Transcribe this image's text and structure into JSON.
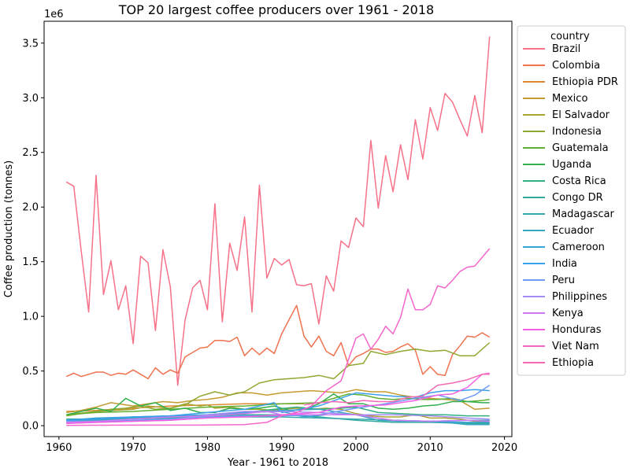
{
  "chart_data": {
    "type": "line",
    "title": "TOP 20 largest coffee producers over 1961 - 2018",
    "xlabel": "Year - 1961 to 2018",
    "ylabel": "Coffee production (tonnes)",
    "y_multiplier_label": "1e6",
    "xlim": [
      1958,
      2021
    ],
    "ylim": [
      -0.1,
      3.7
    ],
    "x_ticks": [
      1960,
      1970,
      1980,
      1990,
      2000,
      2010,
      2020
    ],
    "y_ticks": [
      0.0,
      0.5,
      1.0,
      1.5,
      2.0,
      2.5,
      3.0,
      3.5
    ],
    "y_tick_labels": [
      "0.0",
      "0.5",
      "1.0",
      "1.5",
      "2.0",
      "2.5",
      "3.0",
      "3.5"
    ],
    "legend_title": "country",
    "legend_position": "outside-right",
    "grid": false,
    "series": [
      {
        "name": "Brazil",
        "color": "#f77189",
        "years": [
          1961,
          1962,
          1963,
          1964,
          1965,
          1966,
          1967,
          1968,
          1969,
          1970,
          1971,
          1972,
          1973,
          1974,
          1975,
          1976,
          1977,
          1978,
          1979,
          1980,
          1981,
          1982,
          1983,
          1984,
          1985,
          1986,
          1987,
          1988,
          1989,
          1990,
          1991,
          1992,
          1993,
          1994,
          1995,
          1996,
          1997,
          1998,
          1999,
          2000,
          2001,
          2002,
          2003,
          2004,
          2005,
          2006,
          2007,
          2008,
          2009,
          2010,
          2011,
          2012,
          2013,
          2014,
          2015,
          2016,
          2017,
          2018
        ],
        "values": [
          2.23,
          2.19,
          1.6,
          1.04,
          2.29,
          1.2,
          1.51,
          1.06,
          1.28,
          0.75,
          1.55,
          1.49,
          0.87,
          1.61,
          1.27,
          0.37,
          0.97,
          1.26,
          1.33,
          1.06,
          2.03,
          0.95,
          1.67,
          1.42,
          1.91,
          1.04,
          2.2,
          1.35,
          1.53,
          1.47,
          1.52,
          1.29,
          1.28,
          1.3,
          0.93,
          1.37,
          1.23,
          1.69,
          1.63,
          1.9,
          1.82,
          2.61,
          1.99,
          2.47,
          2.14,
          2.57,
          2.25,
          2.8,
          2.44,
          2.91,
          2.7,
          3.04,
          2.96,
          2.8,
          2.65,
          3.02,
          2.68,
          3.56
        ]
      },
      {
        "name": "Colombia",
        "color": "#f0724f",
        "years": [
          1961,
          1962,
          1963,
          1964,
          1965,
          1966,
          1967,
          1968,
          1969,
          1970,
          1971,
          1972,
          1973,
          1974,
          1975,
          1976,
          1977,
          1978,
          1979,
          1980,
          1981,
          1982,
          1983,
          1984,
          1985,
          1986,
          1987,
          1988,
          1989,
          1990,
          1991,
          1992,
          1993,
          1994,
          1995,
          1996,
          1997,
          1998,
          1999,
          2000,
          2001,
          2002,
          2003,
          2004,
          2005,
          2006,
          2007,
          2008,
          2009,
          2010,
          2011,
          2012,
          2013,
          2014,
          2015,
          2016,
          2017,
          2018
        ],
        "values": [
          0.45,
          0.48,
          0.45,
          0.47,
          0.49,
          0.49,
          0.46,
          0.48,
          0.47,
          0.51,
          0.47,
          0.43,
          0.53,
          0.47,
          0.51,
          0.48,
          0.63,
          0.67,
          0.71,
          0.72,
          0.78,
          0.78,
          0.77,
          0.81,
          0.64,
          0.71,
          0.65,
          0.71,
          0.66,
          0.84,
          0.97,
          1.1,
          0.82,
          0.72,
          0.82,
          0.68,
          0.64,
          0.76,
          0.55,
          0.63,
          0.66,
          0.7,
          0.7,
          0.67,
          0.68,
          0.72,
          0.75,
          0.69,
          0.47,
          0.54,
          0.47,
          0.46,
          0.65,
          0.73,
          0.82,
          0.81,
          0.85,
          0.81
        ]
      },
      {
        "name": "Ethiopia PDR",
        "color": "#dd8b31",
        "years": [
          1961,
          1965,
          1970,
          1975,
          1980,
          1985,
          1990,
          1993
        ],
        "values": [
          0.13,
          0.14,
          0.16,
          0.18,
          0.19,
          0.2,
          0.2,
          0.2
        ]
      },
      {
        "name": "Mexico",
        "color": "#c49b31",
        "years": [
          1961,
          1963,
          1965,
          1967,
          1968,
          1970,
          1972,
          1974,
          1976,
          1978,
          1980,
          1982,
          1984,
          1986,
          1988,
          1990,
          1992,
          1994,
          1996,
          1998,
          2000,
          2002,
          2004,
          2006,
          2008,
          2010,
          2012,
          2014,
          2016,
          2018
        ],
        "values": [
          0.12,
          0.14,
          0.17,
          0.21,
          0.2,
          0.18,
          0.2,
          0.22,
          0.21,
          0.23,
          0.24,
          0.26,
          0.3,
          0.3,
          0.28,
          0.3,
          0.31,
          0.32,
          0.31,
          0.3,
          0.33,
          0.31,
          0.31,
          0.28,
          0.26,
          0.25,
          0.24,
          0.23,
          0.15,
          0.16
        ]
      },
      {
        "name": "El Salvador",
        "color": "#aba231",
        "years": [
          1961,
          1965,
          1970,
          1972,
          1975,
          1977,
          1979,
          1980,
          1981,
          1983,
          1985,
          1987,
          1989,
          1990,
          1992,
          1994,
          1996,
          1998,
          2000,
          2002,
          2004,
          2006,
          2008,
          2010,
          2012,
          2014,
          2016,
          2018
        ],
        "values": [
          0.1,
          0.13,
          0.15,
          0.18,
          0.16,
          0.2,
          0.18,
          0.19,
          0.16,
          0.17,
          0.15,
          0.15,
          0.14,
          0.15,
          0.16,
          0.15,
          0.16,
          0.15,
          0.11,
          0.09,
          0.08,
          0.08,
          0.1,
          0.07,
          0.07,
          0.06,
          0.04,
          0.03
        ]
      },
      {
        "name": "Indonesia",
        "color": "#8ea831",
        "years": [
          1961,
          1963,
          1965,
          1967,
          1969,
          1971,
          1973,
          1975,
          1977,
          1979,
          1981,
          1983,
          1985,
          1987,
          1989,
          1991,
          1993,
          1995,
          1997,
          1999,
          2001,
          2002,
          2004,
          2006,
          2008,
          2010,
          2012,
          2014,
          2016,
          2018
        ],
        "values": [
          0.09,
          0.11,
          0.13,
          0.15,
          0.16,
          0.18,
          0.15,
          0.16,
          0.19,
          0.27,
          0.31,
          0.28,
          0.31,
          0.39,
          0.42,
          0.43,
          0.44,
          0.46,
          0.43,
          0.55,
          0.57,
          0.68,
          0.65,
          0.68,
          0.7,
          0.68,
          0.69,
          0.64,
          0.64,
          0.76
        ]
      },
      {
        "name": "Guatemala",
        "color": "#5fb031",
        "years": [
          1961,
          1965,
          1970,
          1975,
          1980,
          1985,
          1990,
          1995,
          1997,
          1999,
          2001,
          2003,
          2005,
          2007,
          2009,
          2011,
          2013,
          2015,
          2017,
          2018
        ],
        "values": [
          0.1,
          0.12,
          0.13,
          0.15,
          0.17,
          0.18,
          0.2,
          0.21,
          0.25,
          0.29,
          0.28,
          0.25,
          0.24,
          0.25,
          0.24,
          0.24,
          0.25,
          0.22,
          0.23,
          0.24
        ]
      },
      {
        "name": "Uganda",
        "color": "#33b04d",
        "years": [
          1961,
          1963,
          1965,
          1967,
          1969,
          1971,
          1973,
          1975,
          1977,
          1979,
          1981,
          1983,
          1985,
          1987,
          1989,
          1991,
          1993,
          1995,
          1997,
          1999,
          2001,
          2003,
          2005,
          2007,
          2009,
          2011,
          2013,
          2015,
          2017,
          2018
        ],
        "values": [
          0.1,
          0.13,
          0.16,
          0.13,
          0.25,
          0.18,
          0.21,
          0.14,
          0.16,
          0.12,
          0.12,
          0.16,
          0.15,
          0.16,
          0.18,
          0.14,
          0.15,
          0.2,
          0.29,
          0.2,
          0.2,
          0.16,
          0.15,
          0.16,
          0.18,
          0.19,
          0.22,
          0.22,
          0.21,
          0.21
        ]
      },
      {
        "name": "Costa Rica",
        "color": "#34ad7f",
        "years": [
          1961,
          1965,
          1970,
          1975,
          1980,
          1985,
          1989,
          1992,
          1995,
          1998,
          2000,
          2003,
          2006,
          2009,
          2012,
          2015,
          2018
        ],
        "values": [
          0.05,
          0.06,
          0.08,
          0.08,
          0.1,
          0.12,
          0.15,
          0.17,
          0.15,
          0.16,
          0.17,
          0.12,
          0.11,
          0.1,
          0.1,
          0.09,
          0.09
        ]
      },
      {
        "name": "Congo DR",
        "color": "#35aa9c",
        "years": [
          1961,
          1965,
          1970,
          1975,
          1980,
          1985,
          1990,
          1995,
          2000,
          2005,
          2010,
          2015,
          2018
        ],
        "values": [
          0.06,
          0.06,
          0.07,
          0.08,
          0.09,
          0.1,
          0.1,
          0.08,
          0.05,
          0.03,
          0.03,
          0.02,
          0.02
        ]
      },
      {
        "name": "Madagascar",
        "color": "#36a8b0",
        "years": [
          1961,
          1965,
          1970,
          1975,
          1980,
          1985,
          1990,
          1995,
          2000,
          2005,
          2010,
          2015,
          2018
        ],
        "values": [
          0.05,
          0.05,
          0.06,
          0.07,
          0.08,
          0.08,
          0.08,
          0.07,
          0.06,
          0.05,
          0.04,
          0.05,
          0.05
        ]
      },
      {
        "name": "Ecuador",
        "color": "#37a6c1",
        "years": [
          1961,
          1965,
          1970,
          1975,
          1980,
          1985,
          1990,
          1995,
          2000,
          2003,
          2006,
          2009,
          2012,
          2015,
          2018
        ],
        "values": [
          0.03,
          0.05,
          0.07,
          0.09,
          0.09,
          0.12,
          0.14,
          0.15,
          0.1,
          0.05,
          0.04,
          0.04,
          0.03,
          0.01,
          0.01
        ]
      },
      {
        "name": "Cameroon",
        "color": "#38a3d6",
        "years": [
          1961,
          1965,
          1970,
          1975,
          1980,
          1985,
          1990,
          1993,
          1996,
          2000,
          2005,
          2010,
          2015,
          2018
        ],
        "values": [
          0.05,
          0.07,
          0.08,
          0.09,
          0.1,
          0.12,
          0.13,
          0.08,
          0.1,
          0.1,
          0.05,
          0.04,
          0.03,
          0.03
        ]
      },
      {
        "name": "India",
        "color": "#3ba0ec",
        "years": [
          1961,
          1965,
          1970,
          1975,
          1980,
          1985,
          1989,
          1990,
          1995,
          2000,
          2005,
          2008,
          2010,
          2012,
          2014,
          2016,
          2018
        ],
        "values": [
          0.05,
          0.06,
          0.08,
          0.09,
          0.12,
          0.15,
          0.21,
          0.12,
          0.18,
          0.3,
          0.27,
          0.26,
          0.3,
          0.32,
          0.32,
          0.33,
          0.32
        ]
      },
      {
        "name": "Peru",
        "color": "#6e9bf4",
        "years": [
          1961,
          1965,
          1970,
          1975,
          1980,
          1985,
          1990,
          1995,
          2000,
          2004,
          2008,
          2011,
          2014,
          2016,
          2018
        ],
        "values": [
          0.04,
          0.04,
          0.05,
          0.06,
          0.08,
          0.09,
          0.09,
          0.1,
          0.16,
          0.2,
          0.25,
          0.28,
          0.23,
          0.28,
          0.37
        ]
      },
      {
        "name": "Philippines",
        "color": "#a48cf4",
        "years": [
          1961,
          1965,
          1970,
          1975,
          1980,
          1985,
          1990,
          1995,
          2000,
          2005,
          2010,
          2015,
          2018
        ],
        "values": [
          0.02,
          0.03,
          0.04,
          0.05,
          0.1,
          0.13,
          0.13,
          0.12,
          0.1,
          0.1,
          0.09,
          0.07,
          0.06
        ]
      },
      {
        "name": "Kenya",
        "color": "#cc7af4",
        "years": [
          1961,
          1965,
          1970,
          1975,
          1980,
          1985,
          1988,
          1990,
          1995,
          2000,
          2005,
          2010,
          2015,
          2018
        ],
        "values": [
          0.03,
          0.04,
          0.06,
          0.08,
          0.09,
          0.11,
          0.13,
          0.1,
          0.1,
          0.1,
          0.05,
          0.04,
          0.05,
          0.04
        ]
      },
      {
        "name": "Honduras",
        "color": "#f45fe1",
        "years": [
          1961,
          1965,
          1970,
          1975,
          1980,
          1985,
          1990,
          1995,
          1998,
          2000,
          2004,
          2008,
          2011,
          2013,
          2015,
          2017,
          2018
        ],
        "values": [
          0.02,
          0.03,
          0.04,
          0.05,
          0.07,
          0.08,
          0.1,
          0.12,
          0.17,
          0.18,
          0.19,
          0.23,
          0.28,
          0.29,
          0.35,
          0.47,
          0.48
        ]
      },
      {
        "name": "Viet Nam",
        "color": "#f565cc",
        "years": [
          1961,
          1965,
          1970,
          1975,
          1980,
          1985,
          1988,
          1990,
          1992,
          1994,
          1996,
          1998,
          2000,
          2001,
          2002,
          2003,
          2004,
          2005,
          2006,
          2007,
          2008,
          2009,
          2010,
          2011,
          2012,
          2013,
          2014,
          2015,
          2016,
          2017,
          2018
        ],
        "values": [
          0.003,
          0.004,
          0.005,
          0.005,
          0.006,
          0.01,
          0.03,
          0.09,
          0.12,
          0.18,
          0.32,
          0.41,
          0.8,
          0.84,
          0.7,
          0.79,
          0.91,
          0.84,
          0.99,
          1.25,
          1.06,
          1.06,
          1.11,
          1.28,
          1.26,
          1.33,
          1.41,
          1.45,
          1.46,
          1.54,
          1.62
        ]
      },
      {
        "name": "Ethiopia",
        "color": "#f668b2",
        "years": [
          1993,
          1995,
          1997,
          1999,
          2001,
          2003,
          2005,
          2007,
          2009,
          2011,
          2013,
          2015,
          2017,
          2018
        ],
        "values": [
          0.19,
          0.21,
          0.22,
          0.21,
          0.23,
          0.22,
          0.22,
          0.26,
          0.27,
          0.37,
          0.39,
          0.42,
          0.47,
          0.47
        ]
      }
    ]
  }
}
